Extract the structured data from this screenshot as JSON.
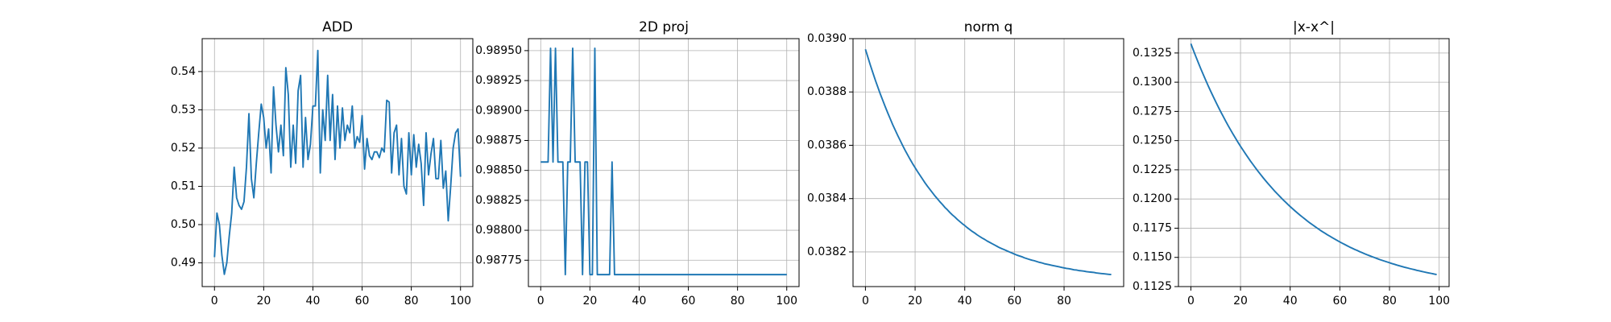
{
  "chart_data": [
    {
      "type": "line",
      "title": "ADD",
      "color": "#1f77b4",
      "grid": true,
      "xlim": [
        -5,
        105
      ],
      "xticks": [
        0,
        20,
        40,
        60,
        80,
        100
      ],
      "ylim": [
        0.4838,
        0.5486
      ],
      "yticks": [
        0.49,
        {
          "value": 0.5,
          "label": "0.50"
        },
        0.51,
        0.52,
        0.53,
        0.54
      ],
      "values": [
        0.4915,
        0.503,
        0.5,
        0.492,
        0.487,
        0.49,
        0.497,
        0.503,
        0.515,
        0.507,
        0.505,
        0.504,
        0.506,
        0.515,
        0.529,
        0.512,
        0.507,
        0.516,
        0.524,
        0.5315,
        0.528,
        0.52,
        0.525,
        0.5135,
        0.536,
        0.526,
        0.519,
        0.526,
        0.518,
        0.541,
        0.534,
        0.515,
        0.526,
        0.516,
        0.535,
        0.539,
        0.515,
        0.528,
        0.517,
        0.521,
        0.531,
        0.531,
        0.5455,
        0.5135,
        0.53,
        0.522,
        0.539,
        0.522,
        0.534,
        0.517,
        0.531,
        0.52,
        0.5305,
        0.522,
        0.526,
        0.524,
        0.531,
        0.52,
        0.523,
        0.5215,
        0.5285,
        0.5145,
        0.5225,
        0.518,
        0.517,
        0.519,
        0.519,
        0.5175,
        0.52,
        0.519,
        0.5325,
        0.532,
        0.5135,
        0.524,
        0.526,
        0.513,
        0.5225,
        0.51,
        0.508,
        0.524,
        0.513,
        0.5235,
        0.515,
        0.521,
        0.516,
        0.505,
        0.524,
        0.513,
        0.5185,
        0.5225,
        0.512,
        0.512,
        0.522,
        0.5095,
        0.514,
        0.501,
        0.51,
        0.52,
        0.524,
        0.525,
        0.5125
      ]
    },
    {
      "type": "line",
      "title": "2D proj",
      "color": "#1f77b4",
      "grid": true,
      "xlim": [
        -5,
        105
      ],
      "xticks": [
        0,
        20,
        40,
        60,
        80,
        100
      ],
      "ylim": [
        0.98753,
        0.9896
      ],
      "yticks": [
        0.98775,
        {
          "value": 0.988,
          "label": "0.98800"
        },
        0.98825,
        {
          "value": 0.9885,
          "label": "0.98850"
        },
        0.98875,
        {
          "value": 0.989,
          "label": "0.98900"
        },
        0.98925,
        {
          "value": 0.9895,
          "label": "0.98950"
        }
      ],
      "values": [
        0.98857,
        0.98857,
        0.98857,
        0.98857,
        0.98952,
        0.98857,
        0.98952,
        0.98857,
        0.98857,
        0.98857,
        0.98763,
        0.98857,
        0.98857,
        0.98952,
        0.98857,
        0.98857,
        0.98857,
        0.98763,
        0.98857,
        0.98857,
        0.98763,
        0.98763,
        0.98952,
        0.98763,
        0.98763,
        0.98763,
        0.98763,
        0.98763,
        0.98763,
        0.98857,
        0.98763,
        0.98763,
        0.98763,
        0.98763,
        0.98763,
        0.98763,
        0.98763,
        0.98763,
        0.98763,
        0.98763,
        0.98763,
        0.98763,
        0.98763,
        0.98763,
        0.98763,
        0.98763,
        0.98763,
        0.98763,
        0.98763,
        0.98763,
        0.98763,
        0.98763,
        0.98763,
        0.98763,
        0.98763,
        0.98763,
        0.98763,
        0.98763,
        0.98763,
        0.98763,
        0.98763,
        0.98763,
        0.98763,
        0.98763,
        0.98763,
        0.98763,
        0.98763,
        0.98763,
        0.98763,
        0.98763,
        0.98763,
        0.98763,
        0.98763,
        0.98763,
        0.98763,
        0.98763,
        0.98763,
        0.98763,
        0.98763,
        0.98763,
        0.98763,
        0.98763,
        0.98763,
        0.98763,
        0.98763,
        0.98763,
        0.98763,
        0.98763,
        0.98763,
        0.98763,
        0.98763,
        0.98763,
        0.98763,
        0.98763,
        0.98763,
        0.98763,
        0.98763,
        0.98763,
        0.98763,
        0.98763,
        0.98763
      ]
    },
    {
      "type": "line",
      "title": "norm q",
      "color": "#1f77b4",
      "grid": true,
      "xlim": [
        -5,
        104
      ],
      "xticks": [
        0,
        20,
        40,
        60,
        80
      ],
      "ylim": [
        0.03807,
        0.039
      ],
      "yticks": [
        0.0382,
        0.0384,
        0.0386,
        0.0388,
        {
          "value": 0.039,
          "label": "0.0390"
        }
      ],
      "values": [
        0.03896,
        0.03893,
        0.0389,
        0.038872,
        0.038844,
        0.038818,
        0.038792,
        0.038768,
        0.038744,
        0.038721,
        0.038699,
        0.038677,
        0.038657,
        0.038637,
        0.038618,
        0.038599,
        0.038581,
        0.038564,
        0.038547,
        0.038531,
        0.038516,
        0.038501,
        0.038487,
        0.038473,
        0.038459,
        0.038446,
        0.038434,
        0.038422,
        0.03841,
        0.038399,
        0.038388,
        0.038378,
        0.038367,
        0.038358,
        0.038348,
        0.038339,
        0.038331,
        0.038322,
        0.038314,
        0.038306,
        0.038299,
        0.038291,
        0.038284,
        0.038277,
        0.038271,
        0.038264,
        0.038258,
        0.038252,
        0.038247,
        0.038241,
        0.038236,
        0.038231,
        0.038226,
        0.038221,
        0.038216,
        0.038212,
        0.038208,
        0.038204,
        0.0382,
        0.038196,
        0.038192,
        0.038188,
        0.038185,
        0.038182,
        0.038178,
        0.038175,
        0.038172,
        0.038169,
        0.038167,
        0.038164,
        0.038161,
        0.038159,
        0.038156,
        0.038154,
        0.038152,
        0.03815,
        0.038148,
        0.038146,
        0.038144,
        0.038142,
        0.03814,
        0.038138,
        0.038137,
        0.038135,
        0.038133,
        0.038132,
        0.03813,
        0.038129,
        0.038128,
        0.038126,
        0.038125,
        0.038124,
        0.038123,
        0.038121,
        0.03812,
        0.038119,
        0.038118,
        0.038117,
        0.038116,
        0.038115
      ]
    },
    {
      "type": "line",
      "title": "|x-x^|",
      "color": "#1f77b4",
      "grid": true,
      "xlim": [
        -5,
        104
      ],
      "xticks": [
        0,
        20,
        40,
        60,
        80,
        100
      ],
      "ylim": [
        0.1125,
        0.13373
      ],
      "yticks": [
        0.1125,
        {
          "value": 0.115,
          "label": "0.1150"
        },
        0.1175,
        {
          "value": 0.12,
          "label": "0.1200"
        },
        0.1225,
        {
          "value": 0.125,
          "label": "0.1250"
        },
        0.1275,
        {
          "value": 0.13,
          "label": "0.1300"
        },
        0.1325
      ],
      "values": [
        0.1333,
        0.13274,
        0.1322,
        0.13167,
        0.13115,
        0.13065,
        0.13016,
        0.12968,
        0.12922,
        0.12877,
        0.12833,
        0.1279,
        0.12748,
        0.12708,
        0.12668,
        0.12629,
        0.12592,
        0.12555,
        0.1252,
        0.12485,
        0.12451,
        0.12419,
        0.12387,
        0.12356,
        0.12325,
        0.12296,
        0.12267,
        0.12239,
        0.12212,
        0.12185,
        0.12159,
        0.12134,
        0.1211,
        0.12086,
        0.12062,
        0.1204,
        0.12018,
        0.11996,
        0.11976,
        0.11955,
        0.11935,
        0.11916,
        0.11897,
        0.11879,
        0.11861,
        0.11844,
        0.11827,
        0.1181,
        0.11794,
        0.11779,
        0.11764,
        0.11749,
        0.11734,
        0.1172,
        0.11707,
        0.11693,
        0.11681,
        0.11668,
        0.11656,
        0.11644,
        0.11632,
        0.11621,
        0.1161,
        0.11599,
        0.11588,
        0.11578,
        0.11568,
        0.11559,
        0.11549,
        0.1154,
        0.11531,
        0.11522,
        0.11514,
        0.11506,
        0.11498,
        0.1149,
        0.11482,
        0.11475,
        0.11468,
        0.11461,
        0.11454,
        0.11447,
        0.11441,
        0.11434,
        0.11428,
        0.11422,
        0.11416,
        0.11411,
        0.11405,
        0.114,
        0.11395,
        0.11389,
        0.11385,
        0.1138,
        0.11375,
        0.1137,
        0.11366,
        0.11362,
        0.11357,
        0.11353
      ]
    }
  ]
}
